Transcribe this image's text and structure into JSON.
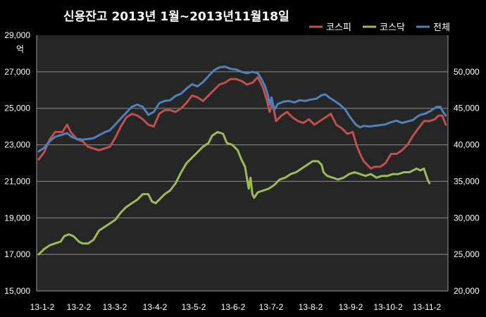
{
  "chart_data": {
    "type": "line",
    "title": "신용잔고 2013년 1월~2013년11월18일",
    "left_axis_unit": "억",
    "left_ylim": [
      15000,
      29000
    ],
    "left_ticks": [
      "15,000",
      "17,000",
      "19,000",
      "21,000",
      "23,000",
      "25,000",
      "27,000",
      "29,000"
    ],
    "right_ylim": [
      20000,
      55000
    ],
    "right_ticks": [
      "20,000",
      "25,000",
      "30,000",
      "35,000",
      "40,000",
      "45,000",
      "50,000"
    ],
    "x_ticks": [
      "13-1-2",
      "13-2-2",
      "13-3-2",
      "13-4-2",
      "13-5-2",
      "13-6-2",
      "13-7-2",
      "13-8-2",
      "13-9-2",
      "13-10-2",
      "13-11-2"
    ],
    "grid": "horizontal",
    "legend_position": "top-right",
    "series": [
      {
        "name": "코스피",
        "axis": "left",
        "color": "#c0504d",
        "points": [
          [
            0,
            22200
          ],
          [
            6,
            22600
          ],
          [
            12,
            23300
          ],
          [
            18,
            23700
          ],
          [
            26,
            23700
          ],
          [
            31,
            24100
          ],
          [
            35,
            23700
          ],
          [
            42,
            23300
          ],
          [
            48,
            23200
          ],
          [
            54,
            22900
          ],
          [
            60,
            22800
          ],
          [
            66,
            22700
          ],
          [
            72,
            22800
          ],
          [
            78,
            22900
          ],
          [
            84,
            23400
          ],
          [
            90,
            24000
          ],
          [
            96,
            24500
          ],
          [
            102,
            24700
          ],
          [
            108,
            24600
          ],
          [
            114,
            24400
          ],
          [
            120,
            24100
          ],
          [
            126,
            24000
          ],
          [
            132,
            24700
          ],
          [
            138,
            24900
          ],
          [
            144,
            24900
          ],
          [
            150,
            24800
          ],
          [
            156,
            25000
          ],
          [
            162,
            25300
          ],
          [
            168,
            25700
          ],
          [
            174,
            25600
          ],
          [
            180,
            25400
          ],
          [
            186,
            25700
          ],
          [
            192,
            26000
          ],
          [
            198,
            26300
          ],
          [
            204,
            26400
          ],
          [
            210,
            26600
          ],
          [
            216,
            26600
          ],
          [
            222,
            26500
          ],
          [
            228,
            26300
          ],
          [
            234,
            26400
          ],
          [
            240,
            26700
          ],
          [
            246,
            26100
          ],
          [
            250,
            25400
          ],
          [
            253,
            24800
          ],
          [
            256,
            25300
          ],
          [
            260,
            24300
          ],
          [
            266,
            24600
          ],
          [
            272,
            24800
          ],
          [
            278,
            24500
          ],
          [
            284,
            24300
          ],
          [
            290,
            24200
          ],
          [
            296,
            24400
          ],
          [
            302,
            24100
          ],
          [
            308,
            24300
          ],
          [
            314,
            24500
          ],
          [
            320,
            24700
          ],
          [
            326,
            24100
          ],
          [
            332,
            23900
          ],
          [
            338,
            23600
          ],
          [
            344,
            23700
          ],
          [
            348,
            23000
          ],
          [
            352,
            22500
          ],
          [
            356,
            22100
          ],
          [
            360,
            21900
          ],
          [
            364,
            21700
          ],
          [
            368,
            21800
          ],
          [
            374,
            21800
          ],
          [
            380,
            22000
          ],
          [
            386,
            22500
          ],
          [
            392,
            22500
          ],
          [
            398,
            22700
          ],
          [
            404,
            23000
          ],
          [
            410,
            23500
          ],
          [
            416,
            23900
          ],
          [
            422,
            24300
          ],
          [
            428,
            24300
          ],
          [
            434,
            24400
          ],
          [
            438,
            24600
          ],
          [
            442,
            24600
          ],
          [
            446,
            24100
          ]
        ]
      },
      {
        "name": "코스닥",
        "axis": "left",
        "color": "#9bbb59",
        "points": [
          [
            0,
            17000
          ],
          [
            6,
            17300
          ],
          [
            12,
            17500
          ],
          [
            18,
            17600
          ],
          [
            24,
            17700
          ],
          [
            28,
            18000
          ],
          [
            33,
            18100
          ],
          [
            38,
            18000
          ],
          [
            44,
            17700
          ],
          [
            48,
            17600
          ],
          [
            54,
            17600
          ],
          [
            60,
            17800
          ],
          [
            66,
            18300
          ],
          [
            72,
            18500
          ],
          [
            78,
            18700
          ],
          [
            84,
            18900
          ],
          [
            90,
            19300
          ],
          [
            96,
            19600
          ],
          [
            102,
            19800
          ],
          [
            108,
            20000
          ],
          [
            114,
            20300
          ],
          [
            120,
            20300
          ],
          [
            124,
            19900
          ],
          [
            128,
            19800
          ],
          [
            132,
            20000
          ],
          [
            138,
            20300
          ],
          [
            144,
            20500
          ],
          [
            150,
            20900
          ],
          [
            156,
            21500
          ],
          [
            162,
            22000
          ],
          [
            168,
            22300
          ],
          [
            174,
            22600
          ],
          [
            180,
            22900
          ],
          [
            186,
            23100
          ],
          [
            190,
            23500
          ],
          [
            196,
            23700
          ],
          [
            202,
            23600
          ],
          [
            206,
            23100
          ],
          [
            212,
            23000
          ],
          [
            218,
            22700
          ],
          [
            222,
            22200
          ],
          [
            226,
            21800
          ],
          [
            228,
            21200
          ],
          [
            230,
            20600
          ],
          [
            232,
            21200
          ],
          [
            234,
            20300
          ],
          [
            236,
            20100
          ],
          [
            240,
            20400
          ],
          [
            246,
            20500
          ],
          [
            252,
            20600
          ],
          [
            258,
            20800
          ],
          [
            264,
            21100
          ],
          [
            270,
            21200
          ],
          [
            276,
            21400
          ],
          [
            282,
            21500
          ],
          [
            288,
            21700
          ],
          [
            294,
            21900
          ],
          [
            300,
            22100
          ],
          [
            306,
            22100
          ],
          [
            310,
            21900
          ],
          [
            312,
            21500
          ],
          [
            316,
            21300
          ],
          [
            322,
            21200
          ],
          [
            328,
            21100
          ],
          [
            334,
            21200
          ],
          [
            340,
            21400
          ],
          [
            346,
            21500
          ],
          [
            352,
            21400
          ],
          [
            358,
            21300
          ],
          [
            364,
            21400
          ],
          [
            370,
            21200
          ],
          [
            376,
            21300
          ],
          [
            382,
            21300
          ],
          [
            388,
            21400
          ],
          [
            394,
            21400
          ],
          [
            400,
            21500
          ],
          [
            406,
            21500
          ],
          [
            410,
            21600
          ],
          [
            414,
            21700
          ],
          [
            418,
            21600
          ],
          [
            422,
            21700
          ],
          [
            424,
            21400
          ],
          [
            426,
            21100
          ],
          [
            428,
            20900
          ]
        ]
      },
      {
        "name": "전체",
        "axis": "right",
        "color": "#4f81bd",
        "points": [
          [
            0,
            39100
          ],
          [
            6,
            39600
          ],
          [
            12,
            40500
          ],
          [
            18,
            41100
          ],
          [
            26,
            41400
          ],
          [
            31,
            41600
          ],
          [
            36,
            41100
          ],
          [
            42,
            40800
          ],
          [
            48,
            40700
          ],
          [
            54,
            40800
          ],
          [
            60,
            40900
          ],
          [
            66,
            41300
          ],
          [
            72,
            41700
          ],
          [
            78,
            42000
          ],
          [
            84,
            42800
          ],
          [
            90,
            43600
          ],
          [
            96,
            44400
          ],
          [
            102,
            45200
          ],
          [
            108,
            45500
          ],
          [
            114,
            45200
          ],
          [
            120,
            44100
          ],
          [
            126,
            44500
          ],
          [
            132,
            45700
          ],
          [
            138,
            46000
          ],
          [
            144,
            46100
          ],
          [
            150,
            46700
          ],
          [
            156,
            47000
          ],
          [
            162,
            47700
          ],
          [
            168,
            48300
          ],
          [
            174,
            48000
          ],
          [
            180,
            48600
          ],
          [
            186,
            49400
          ],
          [
            192,
            50200
          ],
          [
            198,
            50600
          ],
          [
            204,
            50700
          ],
          [
            210,
            50400
          ],
          [
            216,
            50300
          ],
          [
            222,
            50000
          ],
          [
            228,
            49800
          ],
          [
            234,
            50000
          ],
          [
            240,
            49800
          ],
          [
            244,
            49000
          ],
          [
            248,
            48000
          ],
          [
            251,
            46800
          ],
          [
            253,
            45500
          ],
          [
            255,
            46500
          ],
          [
            258,
            44800
          ],
          [
            262,
            45600
          ],
          [
            268,
            45900
          ],
          [
            274,
            46000
          ],
          [
            280,
            45800
          ],
          [
            286,
            46100
          ],
          [
            292,
            46000
          ],
          [
            298,
            46200
          ],
          [
            304,
            46300
          ],
          [
            310,
            46800
          ],
          [
            314,
            46900
          ],
          [
            318,
            46500
          ],
          [
            324,
            46000
          ],
          [
            330,
            45500
          ],
          [
            336,
            44800
          ],
          [
            340,
            44000
          ],
          [
            344,
            43300
          ],
          [
            348,
            42700
          ],
          [
            352,
            42400
          ],
          [
            356,
            42600
          ],
          [
            362,
            42500
          ],
          [
            368,
            42600
          ],
          [
            374,
            42700
          ],
          [
            380,
            42800
          ],
          [
            386,
            43100
          ],
          [
            392,
            43300
          ],
          [
            398,
            43000
          ],
          [
            404,
            43200
          ],
          [
            410,
            43400
          ],
          [
            414,
            43800
          ],
          [
            418,
            44100
          ],
          [
            424,
            44300
          ],
          [
            430,
            44700
          ],
          [
            436,
            45200
          ],
          [
            440,
            45200
          ],
          [
            443,
            44500
          ],
          [
            446,
            44000
          ]
        ]
      }
    ]
  }
}
